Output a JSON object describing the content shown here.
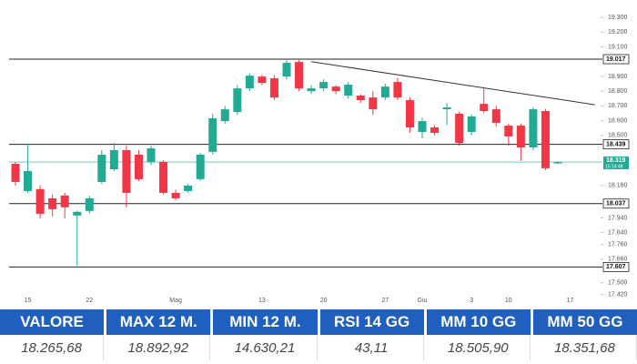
{
  "chart_data": {
    "type": "candlestick",
    "categories": [
      null,
      "15",
      null,
      null,
      null,
      null,
      "22",
      null,
      null,
      null,
      null,
      null,
      null,
      "Mag",
      null,
      null,
      null,
      null,
      null,
      null,
      "13",
      null,
      null,
      null,
      null,
      "20",
      null,
      null,
      null,
      null,
      "27",
      null,
      null,
      "Giu",
      null,
      null,
      null,
      "3",
      null,
      null,
      "10",
      null,
      null,
      null,
      null,
      "17"
    ],
    "open": [
      18307,
      18122,
      18135,
      18073,
      18092,
      17956,
      17987,
      18184,
      18270,
      18400,
      18369,
      18320,
      18320,
      18110,
      18122,
      18203,
      18388,
      18597,
      18659,
      18819,
      18899,
      18887,
      18899,
      18998,
      18800,
      18819,
      18831,
      18770,
      18770,
      18757,
      18757,
      18862,
      18739,
      18523,
      18554,
      18677,
      18647,
      18523,
      18714,
      18677,
      18566,
      18566,
      18418,
      18665,
      18310,
      null
    ],
    "close": [
      18184,
      18258,
      17968,
      17999,
      18012,
      17981,
      18073,
      18369,
      18400,
      18110,
      18203,
      18412,
      18110,
      18073,
      18159,
      18369,
      18616,
      18677,
      18819,
      18905,
      18856,
      18757,
      18992,
      18819,
      18819,
      18862,
      18800,
      18844,
      18739,
      18677,
      18831,
      18757,
      18554,
      18597,
      18517,
      18690,
      18449,
      18628,
      18665,
      18585,
      18493,
      18418,
      18677,
      18277,
      18319,
      null
    ],
    "high": [
      18320,
      18443,
      18160,
      18100,
      18110,
      17990,
      18090,
      18400,
      18449,
      18430,
      18400,
      18430,
      18330,
      18130,
      18170,
      18380,
      18647,
      18700,
      18840,
      18920,
      18910,
      18910,
      19010,
      19010,
      18840,
      18880,
      18840,
      18860,
      18780,
      18800,
      18850,
      18890,
      18760,
      18620,
      18570,
      18720,
      18660,
      18640,
      18819,
      18700,
      18580,
      18580,
      18690,
      18680,
      18325,
      null
    ],
    "low": [
      18160,
      18110,
      17937,
      17950,
      17937,
      17617,
      17970,
      18170,
      18260,
      18012,
      18190,
      18300,
      18100,
      18060,
      18110,
      18190,
      18370,
      18580,
      18640,
      18800,
      18840,
      18740,
      18880,
      18800,
      18780,
      18800,
      18780,
      18750,
      18720,
      18640,
      18740,
      18740,
      18520,
      18480,
      18500,
      18570,
      18430,
      18500,
      18650,
      18560,
      18430,
      18326,
      18400,
      18264,
      18305,
      null
    ],
    "up_color": "#22ab94",
    "down_color": "#f23645",
    "ylim": [
      17350,
      19400
    ],
    "yticks": [
      {
        "value": 19300,
        "label": "19.300"
      },
      {
        "value": 19200,
        "label": "19.200"
      },
      {
        "value": 19100,
        "label": "19.100"
      },
      {
        "value": 18900,
        "label": "18.900"
      },
      {
        "value": 18800,
        "label": "18.800"
      },
      {
        "value": 18700,
        "label": "18.700"
      },
      {
        "value": 18600,
        "label": "18.600"
      },
      {
        "value": 18500,
        "label": "18.500"
      },
      {
        "value": 18160,
        "label": "18.160"
      },
      {
        "value": 17940,
        "label": "17.940"
      },
      {
        "value": 17840,
        "label": "17.840"
      },
      {
        "value": 17760,
        "label": "17.760"
      },
      {
        "value": 17660,
        "label": "17.660"
      },
      {
        "value": 17500,
        "label": "17.500"
      },
      {
        "value": 17420,
        "label": "17.420"
      }
    ],
    "levels": [
      {
        "value": 19017,
        "label": "19.017"
      },
      {
        "value": 18439,
        "label": "18.439"
      },
      {
        "value": 18037,
        "label": "18.037"
      },
      {
        "value": 17607,
        "label": "17.607"
      }
    ],
    "last_price": {
      "value": 18319,
      "label": "18.319",
      "time": "15:14:48",
      "color": "#22ab94"
    },
    "trendline": {
      "x": [
        24,
        47
      ],
      "y": [
        19000,
        18708
      ]
    }
  },
  "table": {
    "headers": [
      "VALORE",
      "MAX 12 M.",
      "MIN 12 M.",
      "RSI 14 GG",
      "MM 10 GG",
      "MM 50 GG"
    ],
    "values": [
      "18.265,68",
      "18.892,92",
      "14.630,21",
      "43,11",
      "18.505,90",
      "18.351,68"
    ]
  }
}
